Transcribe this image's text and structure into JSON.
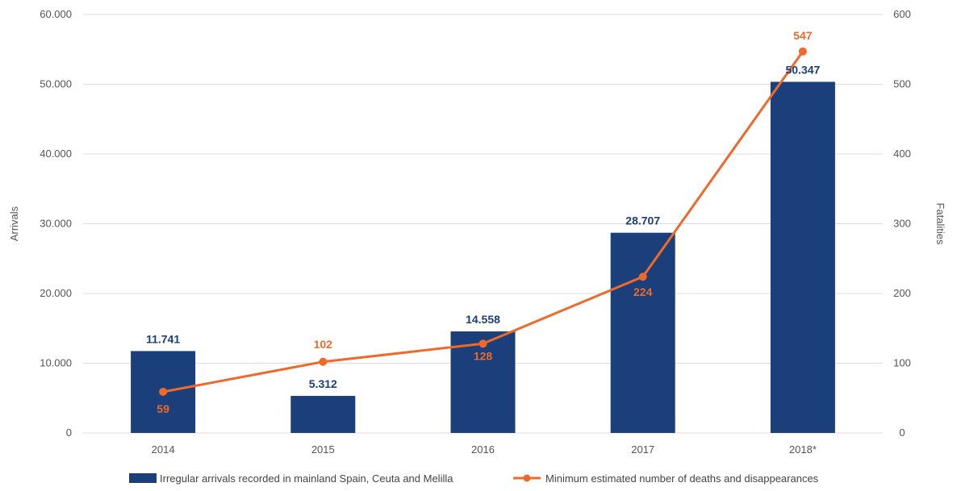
{
  "chart_data": {
    "type": "bar",
    "categories": [
      "2014",
      "2015",
      "2016",
      "2017",
      "2018*"
    ],
    "series": [
      {
        "name": "Irregular arrivals recorded in mainland Spain, Ceuta and Melilla",
        "kind": "bar",
        "axis": "left",
        "values": [
          11741,
          5312,
          14558,
          28707,
          50347
        ],
        "labels": [
          "11.741",
          "5.312",
          "14.558",
          "28.707",
          "50.347"
        ]
      },
      {
        "name": "Minimum estimated number of deaths and disappearances",
        "kind": "line",
        "axis": "right",
        "values": [
          59,
          102,
          128,
          224,
          547
        ],
        "labels": [
          "59",
          "102",
          "128",
          "224",
          "547"
        ]
      }
    ],
    "ylabel": "Arrivals",
    "y2label": "Fatalities",
    "ylim": [
      0,
      60000
    ],
    "y2lim": [
      0,
      600
    ],
    "yticks": [
      "0",
      "10.000",
      "20.000",
      "30.000",
      "40.000",
      "50.000",
      "60.000"
    ],
    "y2ticks": [
      "0",
      "100",
      "200",
      "300",
      "400",
      "500",
      "600"
    ],
    "grid": true,
    "legend": "bottom",
    "colors": {
      "bar": "#1a3f7a",
      "line": "#ee6a2b",
      "grid": "#dddddd",
      "text": "#555555"
    }
  }
}
